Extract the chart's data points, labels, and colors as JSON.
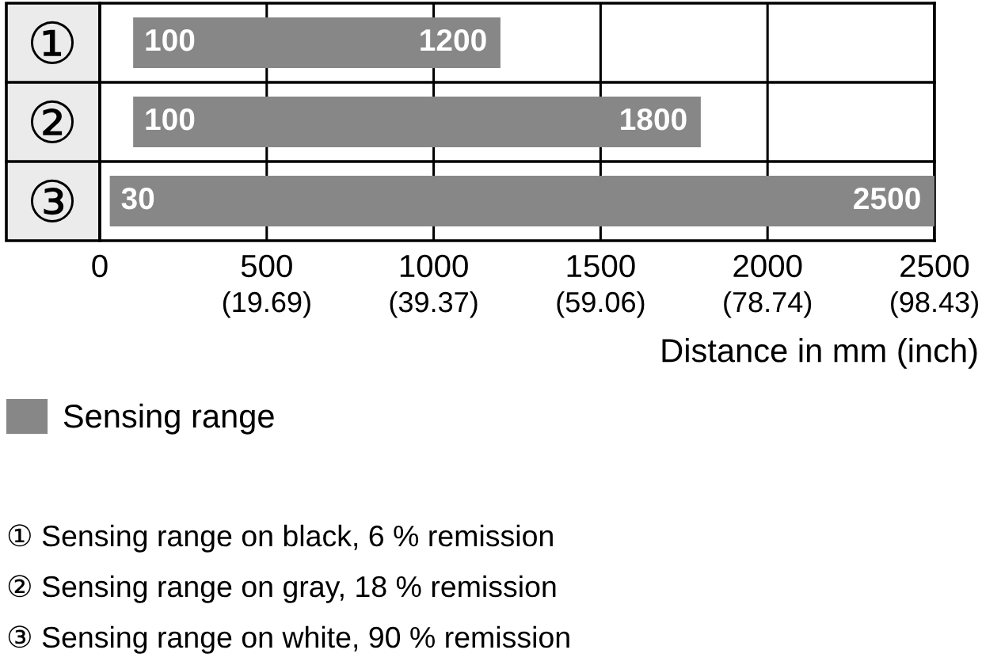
{
  "chart_data": {
    "type": "bar",
    "orientation": "horizontal",
    "categories": [
      "①",
      "②",
      "③"
    ],
    "series": [
      {
        "name": "Sensing range",
        "color": "#878787",
        "values": [
          1100,
          1700,
          2470
        ],
        "base": [
          100,
          100,
          30
        ]
      }
    ],
    "xlim": [
      0,
      2500
    ],
    "xticks": [
      0,
      500,
      1000,
      1500,
      2000,
      2500
    ],
    "x2lim": [
      0,
      98.43
    ],
    "x2ticks": [
      {
        "value": 19.69,
        "label": "(19.69)"
      },
      {
        "value": 39.37,
        "label": "(39.37)"
      },
      {
        "value": 59.06,
        "label": "(59.06)"
      },
      {
        "value": 78.74,
        "label": "(78.74)"
      },
      {
        "value": 98.43,
        "label": "(98.43)"
      }
    ],
    "xlabel": "Distance in mm (inch)",
    "grid": true,
    "legend": "bottom left",
    "annotations": [
      {
        "text": "100",
        "x": 100,
        "y": "①"
      },
      {
        "text": "1200",
        "x": 1200,
        "y": "①"
      },
      {
        "text": "100",
        "x": 100,
        "y": "②"
      },
      {
        "text": "1800",
        "x": 1800,
        "y": "②"
      },
      {
        "text": "30",
        "x": 30,
        "y": "③"
      },
      {
        "text": "2500",
        "x": 2500,
        "y": "③"
      },
      "① Sensing range on black, 6 % remission",
      "② Sensing range on gray, 18 % remission",
      "③ Sensing range on white, 90 % remission"
    ]
  }
}
